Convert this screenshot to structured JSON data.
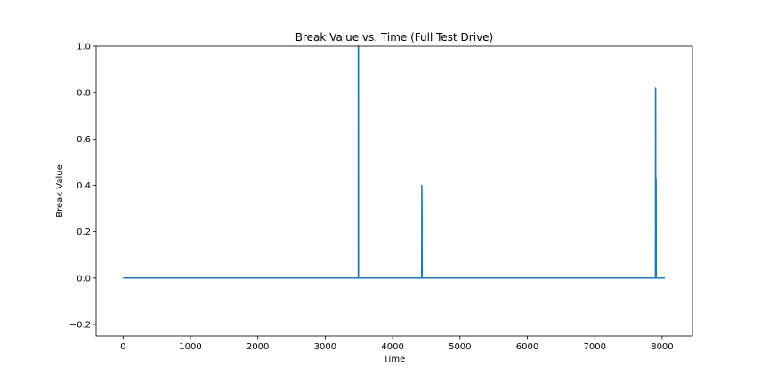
{
  "chart_data": {
    "type": "line",
    "title": "Break Value vs. Time (Full Test Drive)",
    "xlabel": "Time",
    "ylabel": "Break Value",
    "xlim": [
      -400,
      8450
    ],
    "ylim": [
      -0.25,
      1.0
    ],
    "xticks": [
      0,
      1000,
      2000,
      3000,
      4000,
      5000,
      6000,
      7000,
      8000
    ],
    "xtick_labels": [
      "0",
      "1000",
      "2000",
      "3000",
      "4000",
      "5000",
      "6000",
      "7000",
      "8000"
    ],
    "yticks": [
      -0.2,
      0.0,
      0.2,
      0.4,
      0.6,
      0.8,
      1.0
    ],
    "ytick_labels": [
      "−0.2",
      "0.0",
      "0.2",
      "0.4",
      "0.6",
      "0.8",
      "1.0"
    ],
    "grid": false,
    "series": [
      {
        "color": "#1f77b4",
        "x": [
          0,
          3490,
          3491,
          3492,
          3493,
          3494,
          4430,
          4431,
          4432,
          4433,
          4434,
          4435,
          4436,
          4437,
          4438,
          4439,
          4440,
          7900,
          7901,
          7902,
          7903,
          7904,
          7905,
          7906,
          7907,
          7908,
          7909,
          7910,
          7911,
          7912,
          7913,
          7914,
          8040
        ],
        "y": [
          0.0,
          0.0,
          1.0,
          1.0,
          1.0,
          0.0,
          0.0,
          0.05,
          0.2,
          0.4,
          0.39,
          0.35,
          0.3,
          0.08,
          0.05,
          0.0,
          0.0,
          0.0,
          0.2,
          0.82,
          0.82,
          0.8,
          0.4,
          0.0,
          0.0,
          0.0,
          0.2,
          0.43,
          0.3,
          0.0,
          0.0,
          0.0,
          0.0
        ]
      }
    ]
  }
}
